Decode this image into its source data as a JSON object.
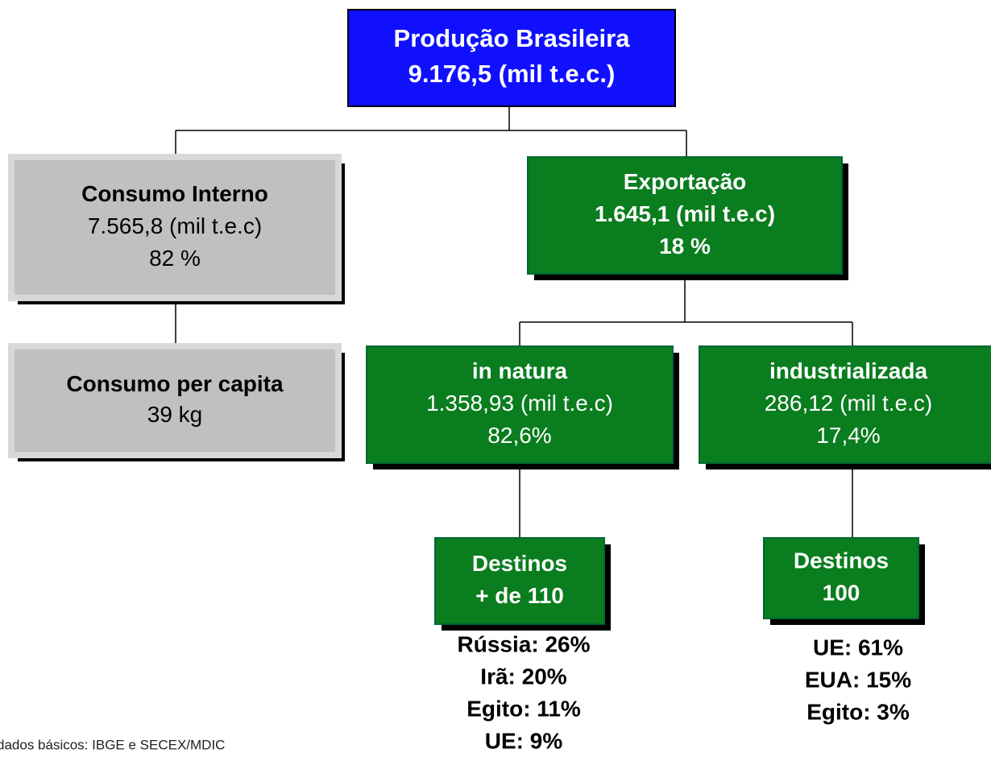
{
  "nodes": [
    {
      "lines": [
        "Produção Brasileira",
        "9.176,5 (mil t.e.c.)"
      ]
    },
    {
      "lines": [
        "Consumo Interno",
        "7.565,8 (mil t.e.c)",
        "82 %"
      ]
    },
    {
      "lines": [
        "Consumo per capita",
        "39 kg"
      ]
    },
    {
      "lines": [
        "Exportação",
        "1.645,1 (mil t.e.c)",
        "18 %"
      ]
    },
    {
      "lines": [
        "in natura",
        "1.358,93 (mil t.e.c)",
        "82,6%"
      ]
    },
    {
      "lines": [
        "industrializada",
        "286,12  (mil t.e.c)",
        "17,4%"
      ]
    },
    {
      "lines": [
        "Destinos",
        "+ de 110"
      ]
    },
    {
      "lines": [
        "Destinos",
        "100"
      ]
    }
  ],
  "destinations": [
    [
      "Rússia: 26%",
      "Irã: 20%",
      "Egito: 11%",
      "UE: 9%"
    ],
    [
      "UE: 61%",
      "EUA: 15%",
      "Egito: 3%"
    ]
  ],
  "footnote": "dados básicos: IBGE e SECEX/MDIC"
}
